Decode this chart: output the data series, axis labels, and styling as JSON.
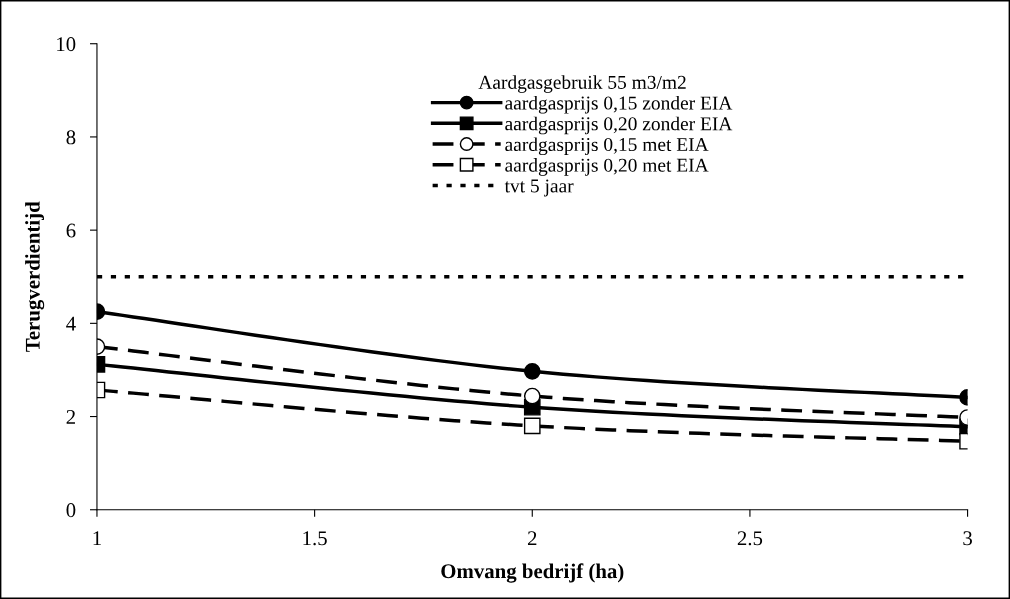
{
  "chart_data": {
    "type": "line",
    "xlabel": "Omvang bedrijf (ha)",
    "ylabel": "Terugverdientijd",
    "legend_title": "Aardgasgebruik 55 m3/m2",
    "x": [
      1,
      2,
      3
    ],
    "series": [
      {
        "name": "aardgasprijs 0,15 zonder EIA",
        "color": "#000000",
        "values": [
          4.25,
          2.97,
          2.41
        ],
        "marker": "circle",
        "line_style": "solid"
      },
      {
        "name": "aardgasprijs 0,20 zonder EIA",
        "color": "#000000",
        "values": [
          3.12,
          2.2,
          1.78
        ],
        "marker": "square",
        "line_style": "solid"
      },
      {
        "name": "aardgasprijs 0,15 met EIA",
        "color": "#000000",
        "values": [
          3.5,
          2.44,
          1.98
        ],
        "marker": "circle",
        "line_style": "dashed"
      },
      {
        "name": "aardgasprijs 0,20 met EIA",
        "color": "#000000",
        "values": [
          2.57,
          1.8,
          1.47
        ],
        "marker": "square",
        "line_style": "dashed"
      }
    ],
    "ref_lines": [
      {
        "axis": "y",
        "value": 5,
        "label": "tvt 5 jaar",
        "color": "#000000",
        "line_style": "dotted"
      }
    ],
    "xlim": [
      1,
      3
    ],
    "xticks": [
      1,
      1.5,
      2,
      2.5,
      3
    ],
    "ylim": [
      0,
      10
    ],
    "yticks": [
      0,
      2,
      4,
      6,
      8,
      10
    ],
    "grid": false,
    "legend": "top right"
  }
}
